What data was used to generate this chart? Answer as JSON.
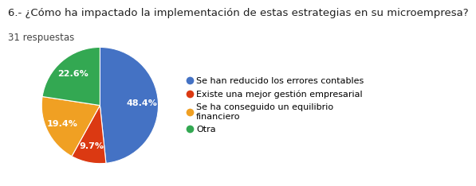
{
  "title": "6.- ¿Cómo ha impactado la implementación de estas estrategias en su microempresa?",
  "subtitle": "31 respuestas",
  "labels": [
    "Se han reducido los errores contables",
    "Existe una mejor gestión empresarial",
    "Se ha conseguido un equilibrio\nfinanciero",
    "Otra"
  ],
  "values": [
    48.4,
    9.7,
    19.4,
    22.6
  ],
  "colors": [
    "#4472c4",
    "#db3912",
    "#f0a023",
    "#33a852"
  ],
  "title_fontsize": 9.5,
  "subtitle_fontsize": 8.5,
  "legend_fontsize": 8,
  "autopct_fontsize": 8,
  "background_color": "#ffffff",
  "startangle": 90,
  "pct_distance": 0.72
}
